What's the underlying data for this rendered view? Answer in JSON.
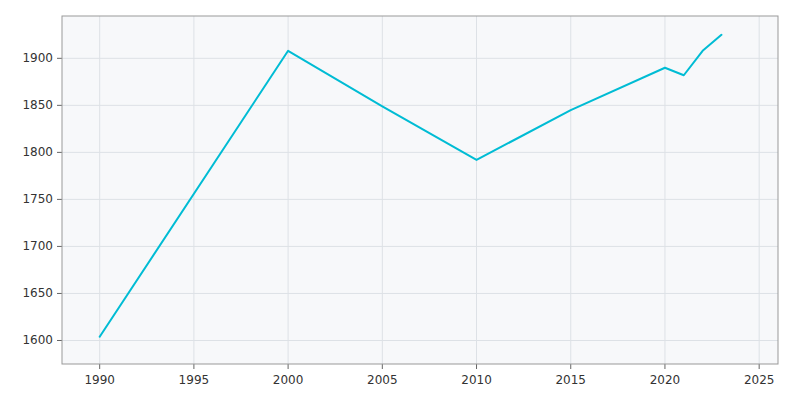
{
  "chart_data": {
    "type": "line",
    "x": [
      1990,
      2000,
      2005,
      2010,
      2015,
      2020,
      2021,
      2022,
      2023
    ],
    "values": [
      1604,
      1908,
      1849,
      1792,
      1845,
      1890,
      1882,
      1908,
      1925
    ],
    "color": "#00BCD4",
    "xlim": [
      1988,
      2026
    ],
    "ylim": [
      1575,
      1945
    ],
    "xticks": [
      1990,
      1995,
      2000,
      2005,
      2010,
      2015,
      2020,
      2025
    ],
    "yticks": [
      1600,
      1650,
      1700,
      1750,
      1800,
      1850,
      1900
    ],
    "grid": true
  }
}
